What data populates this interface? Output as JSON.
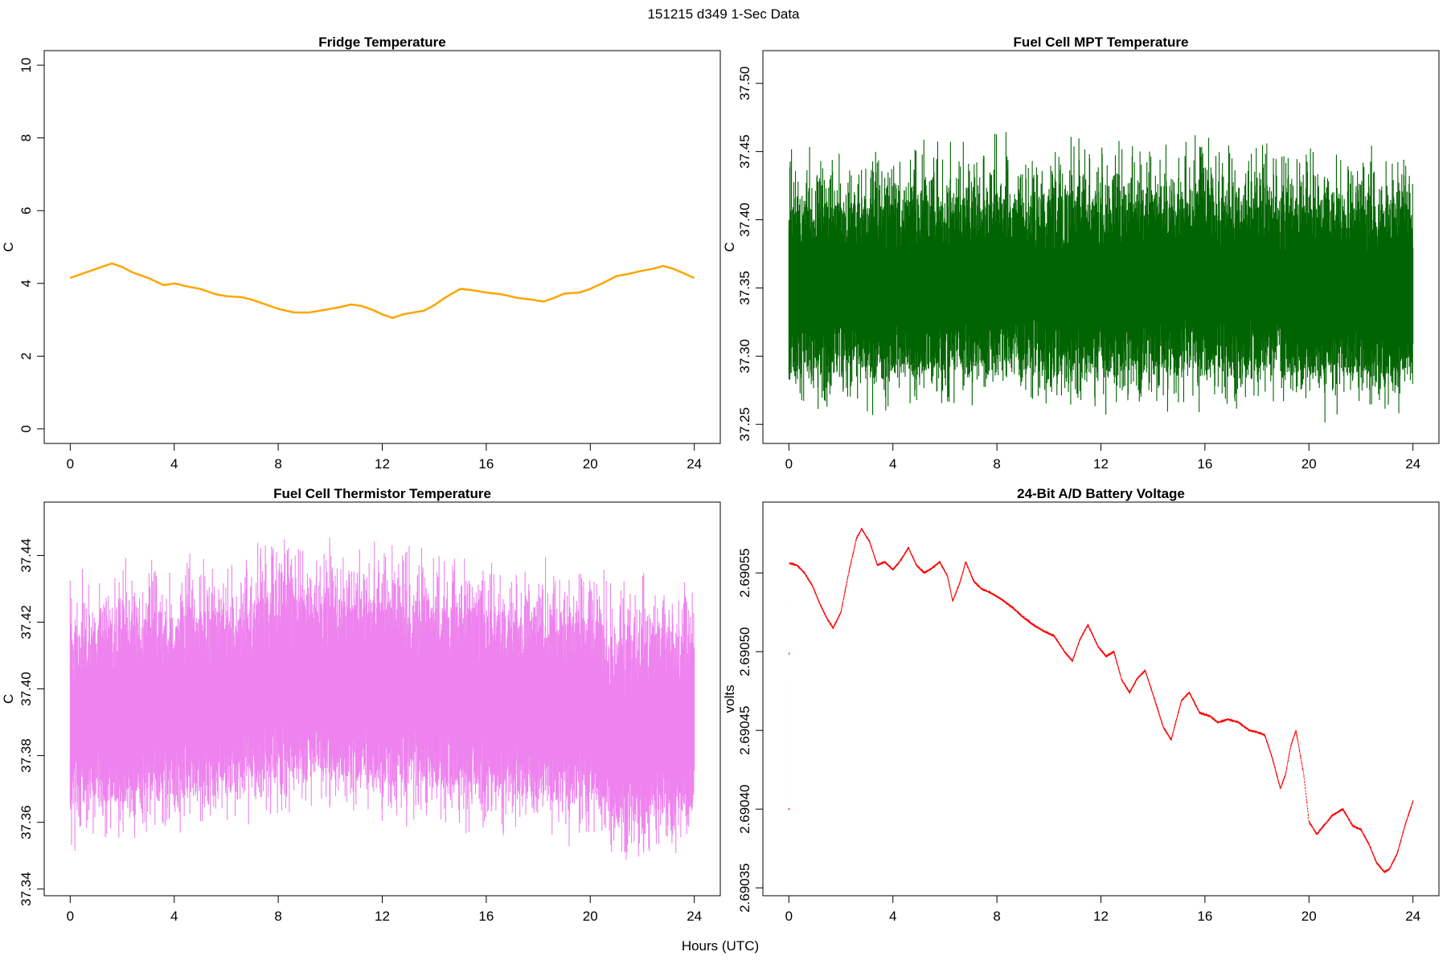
{
  "suptitle": "151215   d349   1-Sec Data",
  "shared_xlabel": "Hours (UTC)",
  "chart_data": [
    {
      "type": "line",
      "id": "fridge",
      "title": "Fridge Temperature",
      "ylabel": "C",
      "xlabel": "",
      "color": "#FFA500",
      "xlim": [
        -1,
        25
      ],
      "ylim": [
        -0.4,
        10.4
      ],
      "xticks": [
        0,
        4,
        8,
        12,
        16,
        20,
        24
      ],
      "xtick_labels": [
        "0",
        "4",
        "8",
        "12",
        "16",
        "20",
        "24"
      ],
      "yticks": [
        0,
        2,
        4,
        6,
        8,
        10
      ],
      "ytick_labels": [
        "0",
        "2",
        "4",
        "6",
        "8",
        "10"
      ],
      "noise": 0.0,
      "series": [
        {
          "name": "Fridge Temperature",
          "x": [
            0,
            0.6,
            1.0,
            1.6,
            2.0,
            2.4,
            3.0,
            3.6,
            4.0,
            4.6,
            5.0,
            5.6,
            6.0,
            6.6,
            7.0,
            7.6,
            8.0,
            8.6,
            9.2,
            9.6,
            10.0,
            10.4,
            10.8,
            11.2,
            11.6,
            12.0,
            12.4,
            12.8,
            13.2,
            13.6,
            14.0,
            14.4,
            15.0,
            15.4,
            16.0,
            16.6,
            17.2,
            17.8,
            18.2,
            18.6,
            19.0,
            19.6,
            20.0,
            20.6,
            21.0,
            21.4,
            22.0,
            22.4,
            22.8,
            23.2,
            24.0
          ],
          "y": [
            4.15,
            4.3,
            4.4,
            4.55,
            4.45,
            4.3,
            4.15,
            3.95,
            4.0,
            3.9,
            3.85,
            3.7,
            3.65,
            3.62,
            3.55,
            3.4,
            3.3,
            3.2,
            3.2,
            3.25,
            3.3,
            3.35,
            3.42,
            3.38,
            3.28,
            3.15,
            3.05,
            3.15,
            3.2,
            3.25,
            3.4,
            3.6,
            3.85,
            3.82,
            3.75,
            3.7,
            3.6,
            3.55,
            3.5,
            3.6,
            3.72,
            3.75,
            3.85,
            4.05,
            4.2,
            4.25,
            4.35,
            4.4,
            4.48,
            4.4,
            4.15
          ]
        }
      ]
    },
    {
      "type": "line",
      "id": "mpt",
      "title": "Fuel Cell MPT Temperature",
      "ylabel": "C",
      "xlabel": "",
      "color": "#006400",
      "xlim": [
        -1,
        25
      ],
      "ylim": [
        37.236,
        37.524
      ],
      "xticks": [
        0,
        4,
        8,
        12,
        16,
        20,
        24
      ],
      "xtick_labels": [
        "0",
        "4",
        "8",
        "12",
        "16",
        "20",
        "24"
      ],
      "yticks": [
        37.25,
        37.3,
        37.35,
        37.4,
        37.45,
        37.5
      ],
      "ytick_labels": [
        "37.25",
        "37.30",
        "37.35",
        "37.40",
        "37.45",
        "37.50"
      ],
      "noise": 0.09,
      "series": [
        {
          "name": "Fuel Cell MPT Temperature",
          "x": [
            0,
            4,
            8,
            12,
            16,
            20,
            24
          ],
          "y": [
            37.35,
            37.35,
            37.355,
            37.35,
            37.355,
            37.35,
            37.35
          ]
        }
      ]
    },
    {
      "type": "line",
      "id": "thermistor",
      "title": "Fuel Cell Thermistor Temperature",
      "ylabel": "C",
      "xlabel": "",
      "color": "#EE82EE",
      "xlim": [
        -1,
        25
      ],
      "ylim": [
        37.338,
        37.456
      ],
      "xticks": [
        0,
        4,
        8,
        12,
        16,
        20,
        24
      ],
      "xtick_labels": [
        "0",
        "4",
        "8",
        "12",
        "16",
        "20",
        "24"
      ],
      "yticks": [
        37.34,
        37.36,
        37.38,
        37.4,
        37.42,
        37.44
      ],
      "ytick_labels": [
        "37.34",
        "37.36",
        "37.38",
        "37.40",
        "37.42",
        "37.44"
      ],
      "noise": 0.038,
      "series": [
        {
          "name": "Fuel Cell Thermistor Temperature",
          "x": [
            0,
            2,
            4,
            6,
            8,
            10,
            12,
            14,
            16,
            18,
            20,
            21,
            22,
            24
          ],
          "y": [
            37.392,
            37.393,
            37.394,
            37.397,
            37.402,
            37.401,
            37.4,
            37.398,
            37.396,
            37.395,
            37.394,
            37.386,
            37.389,
            37.389
          ]
        }
      ]
    },
    {
      "type": "line",
      "id": "battery",
      "title": "24-Bit A/D Battery Voltage",
      "ylabel": "volts",
      "xlabel": "",
      "color": "#FF0000",
      "xlim": [
        -1,
        25
      ],
      "ylim": [
        2.690345,
        2.690595
      ],
      "xticks": [
        0,
        4,
        8,
        12,
        16,
        20,
        24
      ],
      "xtick_labels": [
        "0",
        "4",
        "8",
        "12",
        "16",
        "20",
        "24"
      ],
      "yticks": [
        2.69035,
        2.6904,
        2.69045,
        2.6905,
        2.69055
      ],
      "ytick_labels": [
        "2.69035",
        "2.69040",
        "2.69045",
        "2.69050",
        "2.69055"
      ],
      "noise": 9e-07,
      "series": [
        {
          "name": "24-Bit A/D Battery Voltage",
          "x": [
            0,
            0.02,
            0.04,
            0.3,
            0.6,
            0.9,
            1.2,
            1.5,
            1.7,
            2.0,
            2.3,
            2.6,
            2.8,
            3.1,
            3.4,
            3.7,
            4.0,
            4.3,
            4.6,
            4.9,
            5.2,
            5.5,
            5.8,
            6.1,
            6.3,
            6.6,
            6.8,
            7.1,
            7.4,
            7.8,
            8.2,
            8.6,
            9.0,
            9.4,
            9.8,
            10.2,
            10.6,
            10.9,
            11.2,
            11.5,
            11.9,
            12.2,
            12.5,
            12.8,
            13.1,
            13.4,
            13.7,
            14.0,
            14.4,
            14.7,
            15.1,
            15.4,
            15.8,
            16.2,
            16.5,
            16.9,
            17.3,
            17.7,
            18.0,
            18.3,
            18.6,
            18.9,
            19.1,
            19.3,
            19.5,
            19.8,
            20.0,
            20.3,
            20.6,
            20.9,
            21.3,
            21.7,
            22.0,
            22.3,
            22.6,
            22.9,
            23.1,
            23.4,
            23.7,
            24.0
          ],
          "y": [
            2.6904,
            2.690556,
            2.690556,
            2.690555,
            2.69055,
            2.690542,
            2.69053,
            2.69052,
            2.690515,
            2.690525,
            2.69055,
            2.690572,
            2.690578,
            2.69057,
            2.690555,
            2.690557,
            2.690552,
            2.690558,
            2.690566,
            2.690555,
            2.69055,
            2.690553,
            2.690557,
            2.690548,
            2.690532,
            2.690545,
            2.690557,
            2.690545,
            2.69054,
            2.690537,
            2.690533,
            2.690528,
            2.690522,
            2.690517,
            2.690513,
            2.69051,
            2.6905,
            2.690494,
            2.690508,
            2.690517,
            2.690503,
            2.690497,
            2.6905,
            2.690482,
            2.690474,
            2.690483,
            2.690488,
            2.690473,
            2.690452,
            2.690444,
            2.690469,
            2.690474,
            2.690461,
            2.690459,
            2.690455,
            2.690457,
            2.690455,
            2.69045,
            2.690449,
            2.690447,
            2.690432,
            2.690413,
            2.690422,
            2.69044,
            2.69045,
            2.690422,
            2.690392,
            2.690384,
            2.69039,
            2.690396,
            2.6904,
            2.690389,
            2.690387,
            2.690378,
            2.690366,
            2.69036,
            2.690362,
            2.690372,
            2.69039,
            2.690405
          ]
        }
      ]
    }
  ]
}
